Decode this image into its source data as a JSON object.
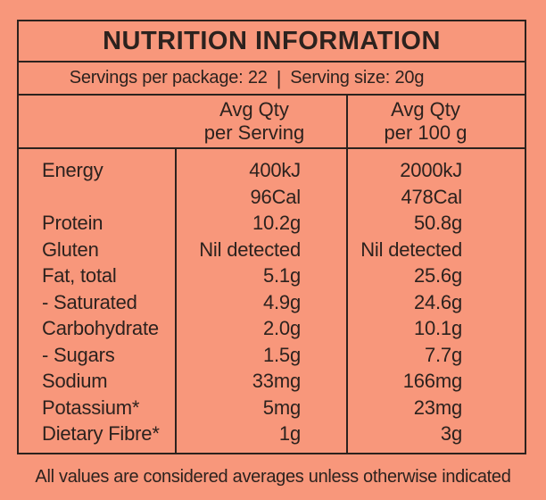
{
  "colors": {
    "background": "#F8977B",
    "ink": "#2C221E"
  },
  "title": "NUTRITION INFORMATION",
  "servings_row": {
    "servings_per_package": "Servings per package: 22",
    "separator": "|",
    "serving_size": "Serving size: 20g"
  },
  "column_headers": {
    "per_serving": {
      "line1": "Avg Qty",
      "line2": "per Serving"
    },
    "per_100g": {
      "line1": "Avg Qty",
      "line2": "per 100 g"
    }
  },
  "rows": [
    {
      "label": "Energy",
      "per_serving": "400kJ",
      "per_100g": "2000kJ"
    },
    {
      "label": "",
      "per_serving": "96Cal",
      "per_100g": "478Cal"
    },
    {
      "label": "Protein",
      "per_serving": "10.2g",
      "per_100g": "50.8g"
    },
    {
      "label": "Gluten",
      "per_serving": "Nil detected",
      "per_100g": "Nil detected"
    },
    {
      "label": "Fat, total",
      "per_serving": "5.1g",
      "per_100g": "25.6g"
    },
    {
      "label": "- Saturated",
      "per_serving": "4.9g",
      "per_100g": "24.6g"
    },
    {
      "label": "Carbohydrate",
      "per_serving": "2.0g",
      "per_100g": "10.1g"
    },
    {
      "label": "- Sugars",
      "per_serving": "1.5g",
      "per_100g": "7.7g"
    },
    {
      "label": "Sodium",
      "per_serving": "33mg",
      "per_100g": "166mg"
    },
    {
      "label": "Potassium*",
      "per_serving": "5mg",
      "per_100g": "23mg"
    },
    {
      "label": "Dietary Fibre*",
      "per_serving": "1g",
      "per_100g": "3g"
    }
  ],
  "footnote": "All values are considered averages unless otherwise indicated"
}
